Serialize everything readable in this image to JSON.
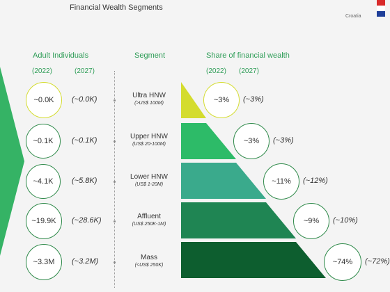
{
  "header": {
    "title": "Financial Wealth Segments",
    "country": "Croatia",
    "flag_colors": [
      "#d92b2b",
      "#ffffff",
      "#1f3f99"
    ]
  },
  "columns": {
    "adults_label": "Adult Individuals",
    "segment_label": "Segment",
    "share_label": "Share of financial wealth",
    "year1": "(2022)",
    "year2": "(2027)"
  },
  "colors": {
    "accent": "#2e9d57",
    "arrow": "#35b365",
    "tiers": [
      "#d4dc2e",
      "#2dbb68",
      "#3aaa8c",
      "#1f8553",
      "#0d5e2f"
    ]
  },
  "chart_data": {
    "type": "table",
    "title": "Financial Wealth Segments",
    "rows": [
      {
        "segment": "Ultra HNW",
        "range": "(>US$ 100M)",
        "adults_2022": "~0.0K",
        "adults_2027": "(~0.0K)",
        "share_2022": "~3%",
        "share_2027": "(~3%)"
      },
      {
        "segment": "Upper HNW",
        "range": "(US$ 20-100M)",
        "adults_2022": "~0.1K",
        "adults_2027": "(~0.1K)",
        "share_2022": "~3%",
        "share_2027": "(~3%)"
      },
      {
        "segment": "Lower HNW",
        "range": "(US$ 1-20M)",
        "adults_2022": "~4.1K",
        "adults_2027": "(~5.8K)",
        "share_2022": "~11%",
        "share_2027": "(~12%)"
      },
      {
        "segment": "Affluent",
        "range": "(US$ 250K-1M)",
        "adults_2022": "~19.9K",
        "adults_2027": "(~28.6K)",
        "share_2022": "~9%",
        "share_2027": "(~10%)"
      },
      {
        "segment": "Mass",
        "range": "(<US$ 250K)",
        "adults_2022": "~3.3M",
        "adults_2027": "(~3.2M)",
        "share_2022": "~74%",
        "share_2027": "(~72%)"
      }
    ]
  }
}
